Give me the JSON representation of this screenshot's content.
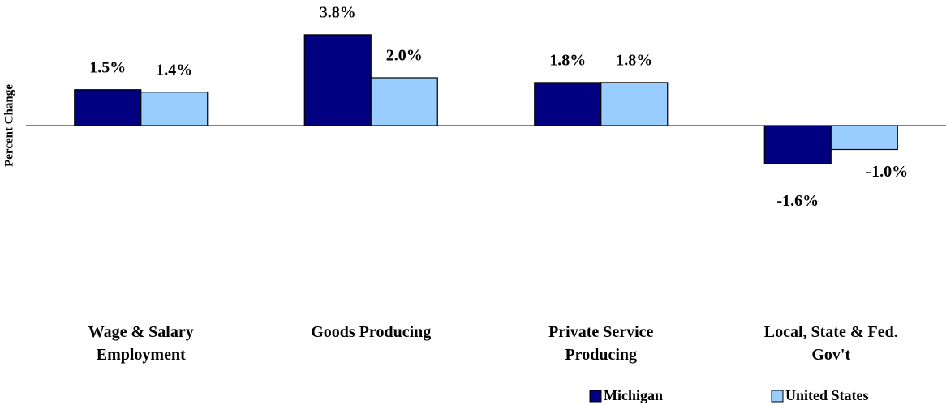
{
  "chart_data": {
    "type": "bar",
    "y_label": "Percent Change",
    "categories": [
      "Wage & Salary Employment",
      "Goods Producing",
      "Private Service Producing",
      "Local, State & Fed. Gov't"
    ],
    "series": [
      {
        "name": "Michigan",
        "color": "#000080",
        "values": [
          1.5,
          3.8,
          1.8,
          -1.6
        ],
        "value_labels": [
          "1.5%",
          "3.8%",
          "1.8%",
          "-1.6%"
        ]
      },
      {
        "name": "United States",
        "color": "#99ccff",
        "values": [
          1.4,
          2.0,
          1.8,
          -1.0
        ],
        "value_labels": [
          "1.4%",
          "2.0%",
          "1.8%",
          "-1.0%"
        ]
      }
    ],
    "ylim": [
      -4,
      4
    ],
    "legend": "bottom-right"
  }
}
